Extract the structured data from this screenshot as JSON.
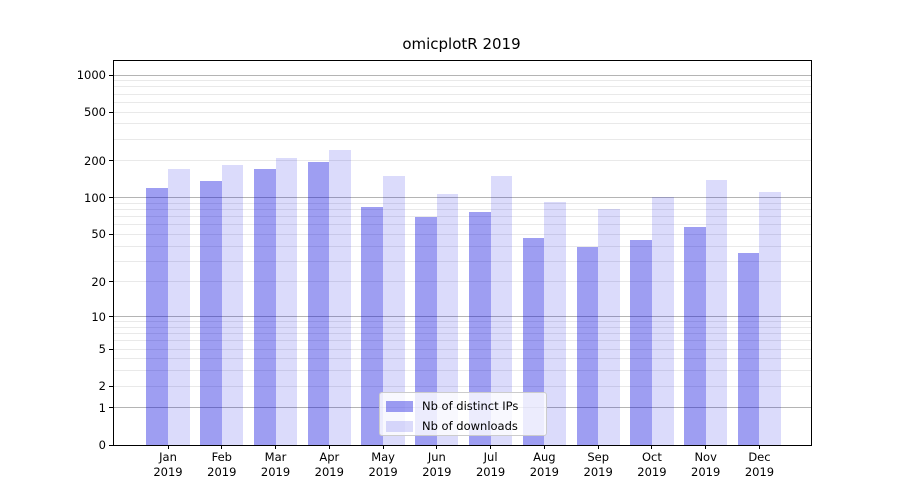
{
  "title": "omicplotR 2019",
  "colors": {
    "ips_fill": "rgba(0,0,222,0.38)",
    "downloads_fill": "rgba(0,0,230,0.14)",
    "major_grid": "#b4b4b4",
    "minor_grid": "#e9e9e9",
    "axis": "#000000",
    "legend_border": "#cccccc"
  },
  "chart_data": {
    "type": "bar",
    "title": "omicplotR 2019",
    "categories": [
      "Jan 2019",
      "Feb 2019",
      "Mar 2019",
      "Apr 2019",
      "May 2019",
      "Jun 2019",
      "Jul 2019",
      "Aug 2019",
      "Sep 2019",
      "Oct 2019",
      "Nov 2019",
      "Dec 2019"
    ],
    "x_months": [
      "Jan",
      "Feb",
      "Mar",
      "Apr",
      "May",
      "Jun",
      "Jul",
      "Aug",
      "Sep",
      "Oct",
      "Nov",
      "Dec"
    ],
    "year": "2019",
    "series": [
      {
        "name": "Nb of distinct IPs",
        "values": [
          120,
          137,
          172,
          197,
          84,
          69,
          76,
          47,
          39,
          45,
          58,
          35
        ]
      },
      {
        "name": "Nb of downloads",
        "values": [
          172,
          184,
          210,
          244,
          152,
          108,
          152,
          93,
          81,
          102,
          140,
          112
        ]
      }
    ],
    "yscale": "log1p",
    "ylim": [
      0,
      1000
    ],
    "y_ticks": [
      0,
      1,
      2,
      5,
      10,
      20,
      50,
      100,
      200,
      500,
      1000
    ],
    "major_gridlines": [
      1,
      10,
      100,
      1000
    ],
    "minor_gridlines": [
      2,
      3,
      4,
      5,
      6,
      7,
      8,
      9,
      20,
      30,
      40,
      50,
      60,
      70,
      80,
      90,
      200,
      300,
      400,
      500,
      600,
      700,
      800,
      900
    ],
    "grid": true,
    "legend_position": "lower center inside",
    "xlabel": "",
    "ylabel": ""
  }
}
